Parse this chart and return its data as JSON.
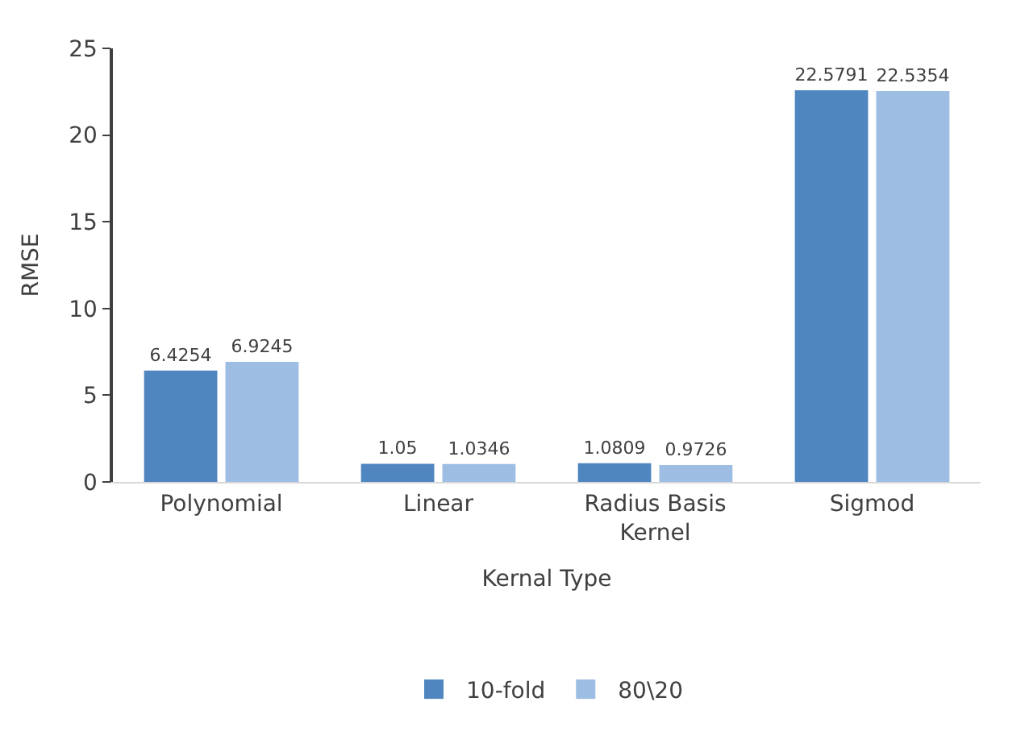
{
  "chart_data": {
    "type": "bar",
    "xlabel": "Kernal Type",
    "ylabel": "RMSE",
    "categories": [
      "Polynomial",
      "Linear",
      "Radius Basis Kernel",
      "Sigmod"
    ],
    "series": [
      {
        "name": "10-fold",
        "color": "#4f86c0",
        "values": [
          6.4254,
          1.05,
          1.0809,
          22.5791
        ]
      },
      {
        "name": "80\\20",
        "color": "#9dbde3",
        "values": [
          6.9245,
          1.0346,
          0.9726,
          22.5354
        ]
      }
    ],
    "ylim": [
      0,
      25
    ],
    "yticks": [
      0,
      5,
      10,
      15,
      20,
      25
    ],
    "legend": "bottom",
    "data_labels": true
  }
}
